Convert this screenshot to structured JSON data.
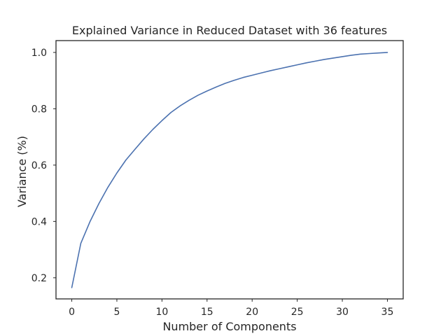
{
  "chart_data": {
    "type": "line",
    "title": "Explained Variance in Reduced Dataset with 36 features",
    "xlabel": "Number of Components",
    "ylabel": "Variance (%)",
    "xlim": [
      -1.75,
      36.75
    ],
    "ylim": [
      0.125,
      1.042
    ],
    "xticks": [
      0,
      5,
      10,
      15,
      20,
      25,
      30,
      35
    ],
    "yticks": [
      0.2,
      0.4,
      0.6,
      0.8,
      1.0
    ],
    "xtick_labels": [
      "0",
      "5",
      "10",
      "15",
      "20",
      "25",
      "30",
      "35"
    ],
    "ytick_labels": [
      "0.2",
      "0.4",
      "0.6",
      "0.8",
      "1.0"
    ],
    "grid": false,
    "line_color": "#4c72b0",
    "series": [
      {
        "x": [
          0,
          1,
          2,
          3,
          4,
          5,
          6,
          7,
          8,
          9,
          10,
          11,
          12,
          13,
          14,
          15,
          16,
          17,
          18,
          19,
          20,
          21,
          22,
          23,
          24,
          25,
          26,
          27,
          28,
          29,
          30,
          31,
          32,
          33,
          34,
          35
        ],
        "values": [
          0.165,
          0.322,
          0.398,
          0.463,
          0.521,
          0.572,
          0.618,
          0.656,
          0.693,
          0.727,
          0.758,
          0.787,
          0.81,
          0.83,
          0.848,
          0.863,
          0.877,
          0.89,
          0.901,
          0.911,
          0.919,
          0.927,
          0.935,
          0.942,
          0.949,
          0.956,
          0.963,
          0.969,
          0.975,
          0.98,
          0.985,
          0.99,
          0.994,
          0.996,
          0.998,
          1.0
        ]
      }
    ]
  }
}
